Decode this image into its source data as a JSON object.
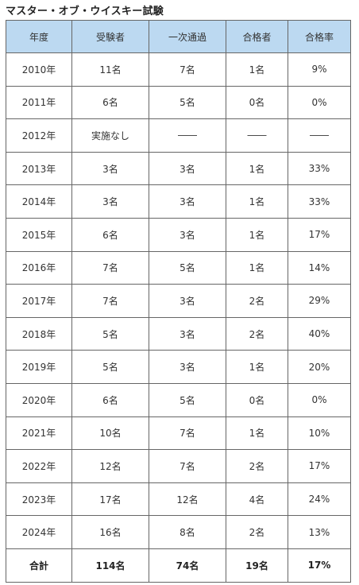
{
  "title": "マスター・オブ・ウイスキー試験",
  "table": {
    "headers": [
      "年度",
      "受験者",
      "一次通過",
      "合格者",
      "合格率"
    ],
    "rows": [
      [
        "2010年",
        "11名",
        "7名",
        "1名",
        "9%"
      ],
      [
        "2011年",
        "6名",
        "5名",
        "0名",
        "0%"
      ],
      [
        "2012年",
        "実施なし",
        "――",
        "――",
        "――"
      ],
      [
        "2013年",
        "3名",
        "3名",
        "1名",
        "33%"
      ],
      [
        "2014年",
        "3名",
        "3名",
        "1名",
        "33%"
      ],
      [
        "2015年",
        "6名",
        "3名",
        "1名",
        "17%"
      ],
      [
        "2016年",
        "7名",
        "5名",
        "1名",
        "14%"
      ],
      [
        "2017年",
        "7名",
        "3名",
        "2名",
        "29%"
      ],
      [
        "2018年",
        "5名",
        "3名",
        "2名",
        "40%"
      ],
      [
        "2019年",
        "5名",
        "3名",
        "1名",
        "20%"
      ],
      [
        "2020年",
        "6名",
        "5名",
        "0名",
        "0%"
      ],
      [
        "2021年",
        "10名",
        "7名",
        "1名",
        "10%"
      ],
      [
        "2022年",
        "12名",
        "7名",
        "2名",
        "17%"
      ],
      [
        "2023年",
        "17名",
        "12名",
        "4名",
        "24%"
      ],
      [
        "2024年",
        "16名",
        "8名",
        "2名",
        "13%"
      ]
    ],
    "total": [
      "合計",
      "114名",
      "74名",
      "19名",
      "17%"
    ]
  },
  "colors": {
    "header_background": "#bcd9f1",
    "border": "#666666"
  }
}
